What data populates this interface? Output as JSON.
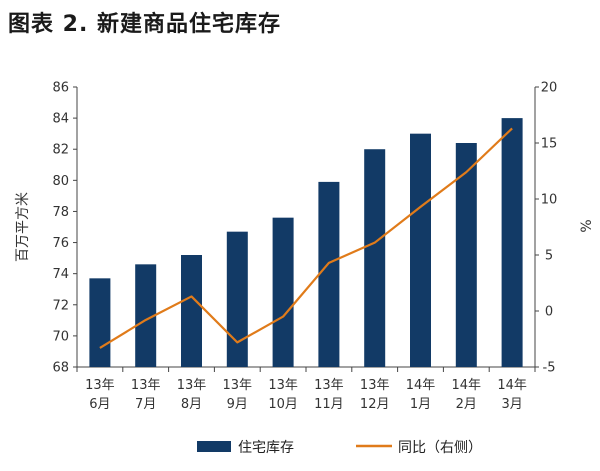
{
  "title": "图表 2. 新建商品住宅库存",
  "chart_data": {
    "type": "bar",
    "categories": [
      [
        "13年",
        "6月"
      ],
      [
        "13年",
        "7月"
      ],
      [
        "13年",
        "8月"
      ],
      [
        "13年",
        "9月"
      ],
      [
        "13年",
        "10月"
      ],
      [
        "13年",
        "11月"
      ],
      [
        "13年",
        "12月"
      ],
      [
        "14年",
        "1月"
      ],
      [
        "14年",
        "2月"
      ],
      [
        "14年",
        "3月"
      ]
    ],
    "series": [
      {
        "name": "住宅库存",
        "type": "bar",
        "axis": "left",
        "color": "#123a66",
        "values": [
          73.7,
          74.6,
          75.2,
          76.7,
          77.6,
          79.9,
          82.0,
          83.0,
          82.4,
          84.0
        ]
      },
      {
        "name": "同比（右侧）",
        "type": "line",
        "axis": "right",
        "color": "#e07b1a",
        "values": [
          -3.3,
          -0.8,
          1.3,
          -2.8,
          -0.5,
          4.3,
          6.1,
          9.3,
          12.4,
          16.3
        ]
      }
    ],
    "ylabel_left": "百万平方米",
    "ylabel_right": "%",
    "ylim_left": [
      68,
      86
    ],
    "yticks_left": [
      68,
      70,
      72,
      74,
      76,
      78,
      80,
      82,
      84,
      86
    ],
    "ylim_right": [
      -5,
      20
    ],
    "yticks_right": [
      -5,
      0,
      5,
      10,
      15,
      20
    ],
    "grid": false,
    "legend_position": "bottom"
  }
}
